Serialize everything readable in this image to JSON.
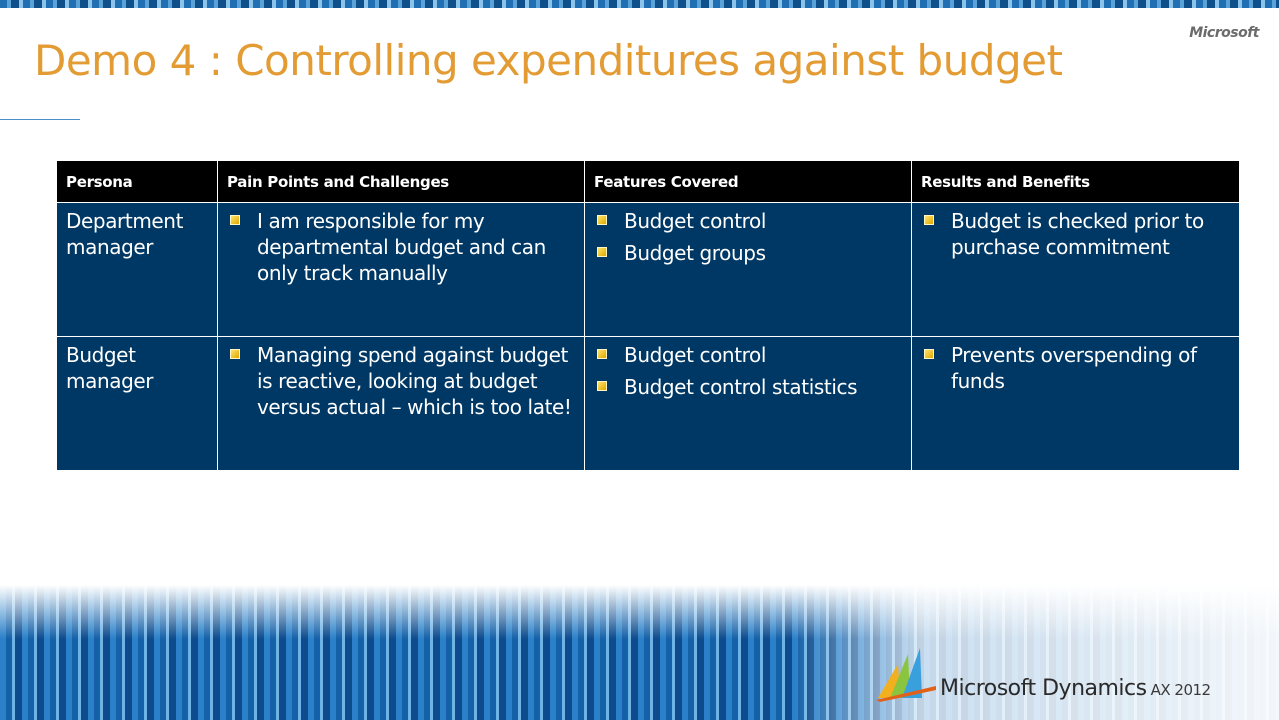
{
  "brand": {
    "corner_logo": "Microsoft",
    "product_name": "Microsoft Dynamics",
    "product_version": "AX 2012"
  },
  "slide": {
    "title": "Demo 4 : Controlling expenditures against budget"
  },
  "table": {
    "headers": [
      "Persona",
      "Pain Points and Challenges",
      "Features Covered",
      "Results and Benefits"
    ],
    "rows": [
      {
        "persona": "Department manager",
        "pain_points": [
          "I am responsible for my departmental budget and can only track manually"
        ],
        "features": [
          "Budget control",
          "Budget groups"
        ],
        "results": [
          "Budget is checked prior to purchase commitment"
        ]
      },
      {
        "persona": "Budget manager",
        "pain_points": [
          "Managing spend against budget is reactive, looking at budget versus actual – which is too late!"
        ],
        "features": [
          "Budget control",
          "Budget control statistics"
        ],
        "results": [
          "Prevents overspending of funds"
        ]
      }
    ]
  },
  "colors": {
    "title": "#e39b34",
    "cell_bg": "#003865",
    "header_bg": "#000000",
    "bullet": "#f2c200"
  }
}
